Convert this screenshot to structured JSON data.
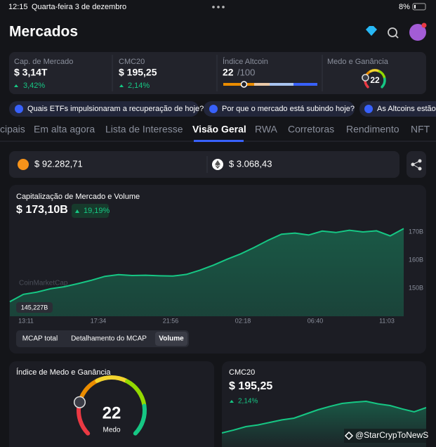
{
  "status_bar": {
    "time": "12:15",
    "date": "Quarta-feira 3 de dezembro",
    "battery": "8%"
  },
  "header": {
    "title": "Mercados"
  },
  "stats": [
    {
      "label": "Cap. de Mercado",
      "value": "$ 3,14T",
      "change": "3,42%"
    },
    {
      "label": "CMC20",
      "value": "$ 195,25",
      "change": "2,14%"
    },
    {
      "label": "Índice Altcoin",
      "value": 22,
      "suffix": "/100"
    },
    {
      "label": "Medo e Ganância",
      "value": 22
    }
  ],
  "prompts": [
    "Quais ETFs impulsionaram a recuperação de hoje?",
    "Por que o mercado está subindo hoje?",
    "As Altcoins estão"
  ],
  "tabs": [
    "cipais",
    "Em alta agora",
    "Lista de Interesse",
    "Visão Geral",
    "RWA",
    "Corretoras",
    "Rendimento",
    "NFT"
  ],
  "prices": {
    "btc": "$ 92.282,71",
    "eth": "$ 3.068,43"
  },
  "market_chart": {
    "title": "Capitalização de Mercado e Volume",
    "value": "$ 173,10B",
    "change": "19,19%",
    "low_label": "145,227B",
    "watermark": "CoinMarketCap",
    "ylim": [
      140,
      177.5
    ],
    "yticks": [
      {
        "value": 150,
        "label": "150B"
      },
      {
        "value": 160,
        "label": "160B"
      },
      {
        "value": 170,
        "label": "170B"
      }
    ],
    "x_labels": [
      "13:11",
      "17:34",
      "21:56",
      "02:18",
      "06:40",
      "11:03"
    ],
    "values": [
      145.2,
      147.8,
      148.6,
      149.8,
      150.5,
      151.6,
      152.8,
      154.2,
      154.8,
      154.5,
      154.6,
      154.4,
      154.3,
      154.9,
      156.4,
      158.2,
      160.3,
      162.2,
      164.5,
      167.0,
      169.2,
      169.6,
      168.9,
      170.3,
      169.8,
      170.6,
      170.0,
      170.4,
      168.6,
      171.2
    ],
    "toggles": [
      "MCAP total",
      "Detalhamento do MCAP",
      "Volume"
    ]
  },
  "fear_greed": {
    "title": "Índice de Medo e Ganância",
    "value": 22,
    "label": "Medo"
  },
  "cmc20": {
    "title": "CMC20",
    "value": "$ 195,25",
    "change": "2,14%",
    "ylim": [
      0,
      10
    ],
    "values": [
      1.5,
      2.2,
      3.0,
      3.4,
      4.0,
      4.6,
      5.0,
      6.0,
      7.0,
      7.8,
      8.5,
      8.8,
      9.0,
      8.4,
      8.0,
      7.2,
      6.5,
      7.5
    ]
  },
  "watermark": "@StarCrypToNewS"
}
